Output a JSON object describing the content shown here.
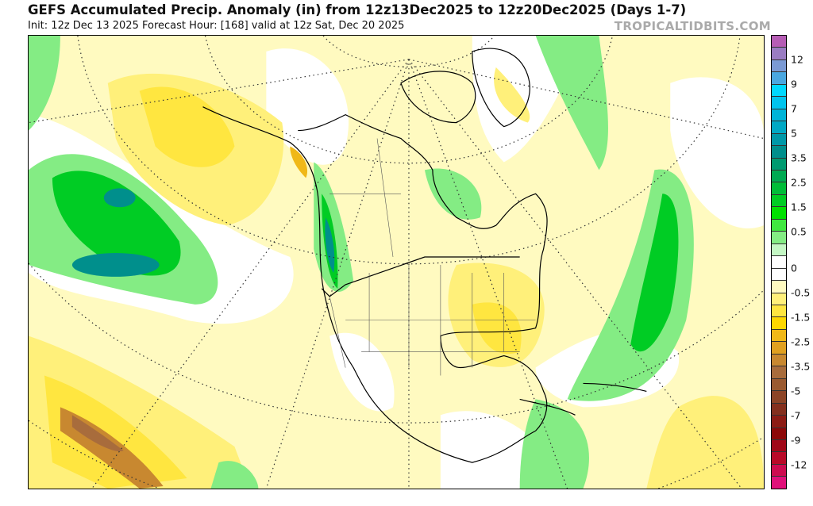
{
  "title": "GEFS Accumulated Precip. Anomaly (in) from 12z13Dec2025 to 12z20Dec2025 (Days 1-7)",
  "subtitle": "Init: 12z Dec 13 2025   Forecast Hour: [168]   valid at 12z Sat, Dec 20 2025",
  "brand": "TROPICALTIDBITS.COM",
  "colorbar": {
    "colors": [
      "#b65db5",
      "#9a7cc2",
      "#7b9ad4",
      "#4aa7e0",
      "#00d8ff",
      "#00c4ee",
      "#00b4d8",
      "#00a8c4",
      "#0098a8",
      "#008f8c",
      "#009a70",
      "#00aa52",
      "#00bc38",
      "#00cc24",
      "#00e000",
      "#40e840",
      "#84ec84",
      "#c4f7c4",
      "#ffffff",
      "#ffffff",
      "#fffac0",
      "#fff07a",
      "#ffe640",
      "#ffd800",
      "#f0b818",
      "#e0a020",
      "#c88830",
      "#a86c3c",
      "#9a5a30",
      "#8c4426",
      "#84301e",
      "#8c1c14",
      "#8c0808",
      "#a00818",
      "#b80a28",
      "#cc0c50",
      "#e0107a"
    ],
    "labels": [
      "12",
      "9",
      "7",
      "5",
      "3.5",
      "2.5",
      "1.5",
      "0.5",
      "0",
      "-0.5",
      "-1.5",
      "-2.5",
      "-3.5",
      "-5",
      "-7",
      "-9",
      "-12"
    ]
  }
}
